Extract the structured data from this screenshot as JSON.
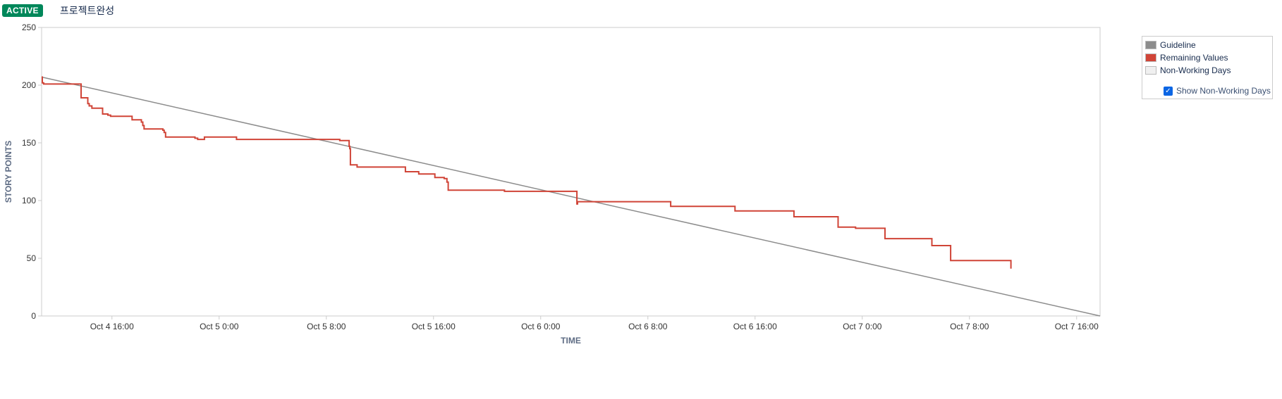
{
  "header": {
    "status_badge": "ACTIVE",
    "sprint_name": "프로젝트완성"
  },
  "legend": {
    "items": [
      {
        "label": "Guideline",
        "color": "#8c8c8c"
      },
      {
        "label": "Remaining Values",
        "color": "#d04437"
      },
      {
        "label": "Non-Working Days",
        "color": "#f0f0f0"
      }
    ],
    "checkbox": {
      "label": "Show Non-Working Days",
      "checked": true,
      "color": "#0c66e4"
    }
  },
  "chart_data": {
    "type": "line",
    "xlabel": "TIME",
    "ylabel": "STORY POINTS",
    "xlim_hours": [
      10.75,
      89.75
    ],
    "ylim": [
      0,
      250
    ],
    "x_ticks": [
      {
        "label": "Oct 4 16:00",
        "hours": 16
      },
      {
        "label": "Oct 5 0:00",
        "hours": 24
      },
      {
        "label": "Oct 5 8:00",
        "hours": 32
      },
      {
        "label": "Oct 5 16:00",
        "hours": 40
      },
      {
        "label": "Oct 6 0:00",
        "hours": 48
      },
      {
        "label": "Oct 6 8:00",
        "hours": 56
      },
      {
        "label": "Oct 6 16:00",
        "hours": 64
      },
      {
        "label": "Oct 7 0:00",
        "hours": 72
      },
      {
        "label": "Oct 7 8:00",
        "hours": 80
      },
      {
        "label": "Oct 7 16:00",
        "hours": 88
      }
    ],
    "y_ticks": [
      0,
      50,
      100,
      150,
      200,
      250
    ],
    "grid": false,
    "series": [
      {
        "name": "Guideline",
        "color": "#8c8c8c",
        "step": false,
        "points": [
          [
            10.75,
            207
          ],
          [
            89.75,
            0
          ]
        ]
      },
      {
        "name": "Remaining Values",
        "color": "#d04437",
        "step": true,
        "points": [
          [
            10.75,
            207
          ],
          [
            10.8,
            202
          ],
          [
            10.9,
            201
          ],
          [
            13.7,
            189
          ],
          [
            14.2,
            184
          ],
          [
            14.3,
            182
          ],
          [
            14.5,
            180
          ],
          [
            15.3,
            175
          ],
          [
            15.7,
            174
          ],
          [
            15.9,
            173
          ],
          [
            17.5,
            170
          ],
          [
            18.2,
            168
          ],
          [
            18.3,
            165
          ],
          [
            18.4,
            162
          ],
          [
            19.8,
            161
          ],
          [
            19.9,
            159
          ],
          [
            20.0,
            155
          ],
          [
            22.2,
            154
          ],
          [
            22.4,
            153
          ],
          [
            22.9,
            155
          ],
          [
            25.3,
            153
          ],
          [
            33.0,
            152
          ],
          [
            33.7,
            147
          ],
          [
            33.75,
            145
          ],
          [
            33.8,
            131
          ],
          [
            34.3,
            129
          ],
          [
            37.9,
            125
          ],
          [
            38.9,
            123
          ],
          [
            40.1,
            120
          ],
          [
            40.8,
            119
          ],
          [
            41.0,
            116
          ],
          [
            41.1,
            109
          ],
          [
            45.3,
            108
          ],
          [
            50.7,
            97
          ],
          [
            50.75,
            99
          ],
          [
            57.7,
            95
          ],
          [
            62.5,
            91
          ],
          [
            66.9,
            86
          ],
          [
            70.2,
            77
          ],
          [
            71.5,
            76
          ],
          [
            73.7,
            67
          ],
          [
            77.2,
            61
          ],
          [
            78.6,
            48
          ],
          [
            83.1,
            41
          ]
        ]
      }
    ]
  }
}
